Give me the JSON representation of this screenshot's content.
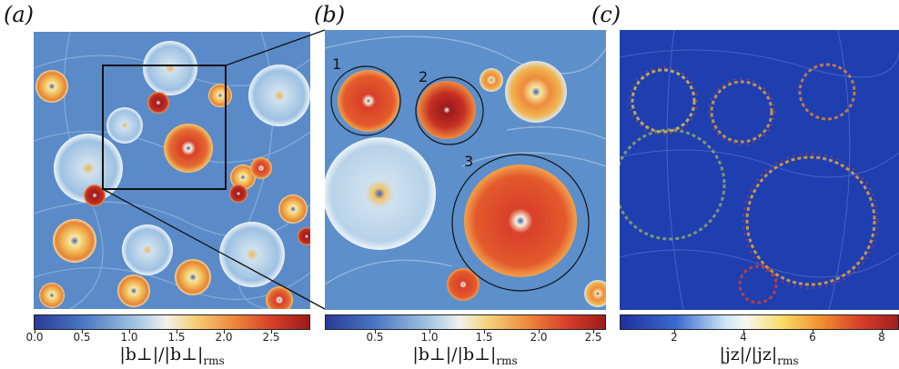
{
  "panels": [
    {
      "id": "a",
      "label": "(a)"
    },
    {
      "id": "b",
      "label": "(b)"
    },
    {
      "id": "c",
      "label": "(c)"
    }
  ],
  "vortex_labels": [
    "1",
    "2",
    "3"
  ],
  "colorbars": [
    {
      "ticks": [
        "0.0",
        "0.5",
        "1.0",
        "1.5",
        "2.0",
        "2.5"
      ],
      "label_main": "|b⊥|/|b⊥|",
      "label_sub": "rms"
    },
    {
      "ticks": [
        "0.5",
        "1.0",
        "1.5",
        "2.0",
        "2.5"
      ],
      "label_main": "|b⊥|/|b⊥|",
      "label_sub": "rms"
    },
    {
      "ticks": [
        "2",
        "4",
        "6",
        "8"
      ],
      "label_main": "|jz|/|jz|",
      "label_sub": "rms"
    }
  ],
  "colors": {
    "field_bg": "#4f7fc2",
    "high": "#d8402a",
    "mid": "#f0c869",
    "light": "#bcd6ea",
    "j_bg": "#1f3fb0"
  }
}
